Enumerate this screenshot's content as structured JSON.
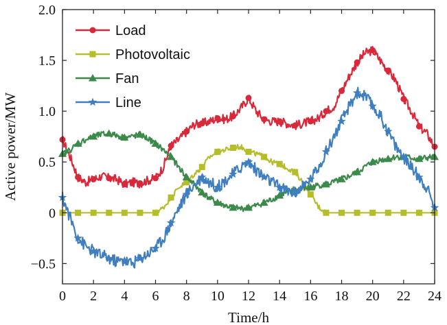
{
  "chart_data": {
    "type": "line",
    "title": "",
    "xlabel": "Time/h",
    "ylabel": "Active power/MW",
    "xlim": [
      0,
      24
    ],
    "ylim": [
      -0.7,
      2.0
    ],
    "xticks": [
      0,
      2,
      4,
      6,
      8,
      10,
      12,
      14,
      16,
      18,
      20,
      22,
      24
    ],
    "xtick_labels": [
      "0",
      "2",
      "4",
      "6",
      "8",
      "10",
      "12",
      "14",
      "16",
      "18",
      "20",
      "22",
      "24"
    ],
    "yticks": [
      -0.5,
      0,
      0.5,
      1.0,
      1.5,
      2.0
    ],
    "ytick_labels": [
      "−0.5",
      "0",
      "0.5",
      "1.0",
      "1.5",
      "2.0"
    ],
    "legend_position": "top-left",
    "series": [
      {
        "name": "Load",
        "color": "#d8283a",
        "marker": "circle",
        "x": [
          0,
          0.5,
          1,
          1.5,
          2,
          2.5,
          3,
          3.5,
          4,
          4.5,
          5,
          5.5,
          6,
          6.5,
          7,
          7.5,
          8,
          8.5,
          9,
          9.5,
          10,
          10.5,
          11,
          11.5,
          12,
          12.5,
          13,
          13.5,
          14,
          14.5,
          15,
          15.5,
          16,
          16.5,
          17,
          17.5,
          18,
          18.5,
          19,
          19.5,
          20,
          20.5,
          21,
          21.5,
          22,
          22.5,
          23,
          23.5,
          24
        ],
        "values": [
          0.72,
          0.55,
          0.35,
          0.3,
          0.33,
          0.36,
          0.34,
          0.33,
          0.28,
          0.3,
          0.29,
          0.32,
          0.34,
          0.45,
          0.66,
          0.72,
          0.8,
          0.87,
          0.88,
          0.9,
          0.93,
          0.92,
          0.95,
          1.03,
          1.13,
          1.0,
          0.92,
          0.9,
          0.9,
          0.88,
          0.86,
          0.88,
          0.9,
          0.93,
          1.0,
          1.05,
          1.2,
          1.35,
          1.48,
          1.57,
          1.6,
          1.5,
          1.4,
          1.3,
          1.12,
          1.0,
          0.85,
          0.78,
          0.65
        ]
      },
      {
        "name": "Photovoltaic",
        "color": "#b5bd2b",
        "marker": "square",
        "x": [
          0,
          0.5,
          1,
          1.5,
          2,
          2.5,
          3,
          3.5,
          4,
          4.5,
          5,
          5.5,
          6,
          6.5,
          7,
          7.5,
          8,
          8.5,
          9,
          9.5,
          10,
          10.5,
          11,
          11.5,
          12,
          12.5,
          13,
          13.5,
          14,
          14.5,
          15,
          15.5,
          16,
          16.5,
          17,
          17.5,
          18,
          18.5,
          19,
          19.5,
          20,
          20.5,
          21,
          21.5,
          22,
          22.5,
          23,
          23.5,
          24
        ],
        "values": [
          0,
          0,
          0,
          0,
          0,
          0,
          0,
          0,
          0,
          0,
          0,
          0,
          0,
          0.05,
          0.15,
          0.25,
          0.3,
          0.38,
          0.45,
          0.55,
          0.6,
          0.62,
          0.64,
          0.65,
          0.6,
          0.58,
          0.55,
          0.5,
          0.48,
          0.44,
          0.4,
          0.3,
          0.18,
          0.06,
          0,
          0,
          0,
          0,
          0,
          0,
          0,
          0,
          0,
          0,
          0,
          0,
          0,
          0,
          0
        ]
      },
      {
        "name": "Fan",
        "color": "#3b8a4a",
        "marker": "triangle",
        "x": [
          0,
          0.5,
          1,
          1.5,
          2,
          2.5,
          3,
          3.5,
          4,
          4.5,
          5,
          5.5,
          6,
          6.5,
          7,
          7.5,
          8,
          8.5,
          9,
          9.5,
          10,
          10.5,
          11,
          11.5,
          12,
          12.5,
          13,
          13.5,
          14,
          14.5,
          15,
          15.5,
          16,
          16.5,
          17,
          17.5,
          18,
          18.5,
          19,
          19.5,
          20,
          20.5,
          21,
          21.5,
          22,
          22.5,
          23,
          23.5,
          24
        ],
        "values": [
          0.58,
          0.62,
          0.68,
          0.72,
          0.75,
          0.77,
          0.78,
          0.76,
          0.74,
          0.75,
          0.77,
          0.73,
          0.68,
          0.62,
          0.55,
          0.45,
          0.35,
          0.28,
          0.2,
          0.14,
          0.1,
          0.07,
          0.05,
          0.04,
          0.05,
          0.07,
          0.1,
          0.13,
          0.17,
          0.2,
          0.22,
          0.24,
          0.25,
          0.27,
          0.28,
          0.3,
          0.33,
          0.36,
          0.4,
          0.45,
          0.5,
          0.52,
          0.53,
          0.55,
          0.55,
          0.54,
          0.53,
          0.54,
          0.55
        ]
      },
      {
        "name": "Line",
        "color": "#3f7fc0",
        "marker": "star",
        "x": [
          0,
          0.5,
          1,
          1.5,
          2,
          2.5,
          3,
          3.5,
          4,
          4.5,
          5,
          5.5,
          6,
          6.5,
          7,
          7.5,
          8,
          8.5,
          9,
          9.5,
          10,
          10.5,
          11,
          11.5,
          12,
          12.5,
          13,
          13.5,
          14,
          14.5,
          15,
          15.5,
          16,
          16.5,
          17,
          17.5,
          18,
          18.5,
          19,
          19.5,
          20,
          20.5,
          21,
          21.5,
          22,
          22.5,
          23,
          23.5,
          24
        ],
        "values": [
          0.15,
          -0.05,
          -0.25,
          -0.33,
          -0.38,
          -0.42,
          -0.45,
          -0.48,
          -0.47,
          -0.5,
          -0.45,
          -0.4,
          -0.35,
          -0.25,
          -0.1,
          0.05,
          0.18,
          0.28,
          0.35,
          0.3,
          0.25,
          0.32,
          0.38,
          0.45,
          0.5,
          0.42,
          0.35,
          0.3,
          0.25,
          0.22,
          0.2,
          0.25,
          0.33,
          0.45,
          0.6,
          0.75,
          0.9,
          1.05,
          1.18,
          1.15,
          1.05,
          0.95,
          0.8,
          0.65,
          0.55,
          0.45,
          0.35,
          0.25,
          0.05
        ]
      }
    ]
  }
}
